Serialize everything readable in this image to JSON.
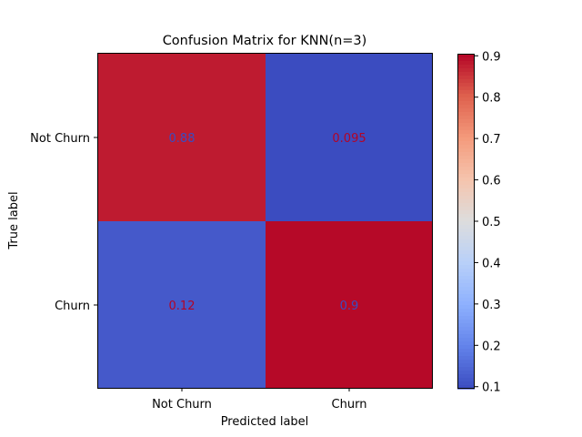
{
  "chart_data": {
    "type": "heatmap",
    "title": "Confusion Matrix for KNN(n=3)",
    "xlabel": "Predicted label",
    "ylabel": "True label",
    "x_categories": [
      "Not Churn",
      "Churn"
    ],
    "y_categories": [
      "Not Churn",
      "Churn"
    ],
    "values": [
      [
        0.88,
        0.095
      ],
      [
        0.12,
        0.9
      ]
    ],
    "cell_labels": [
      [
        "0.88",
        "0.095"
      ],
      [
        "0.12",
        "0.9"
      ]
    ],
    "colormap": "coolwarm",
    "colorbar": {
      "range": [
        0.095,
        0.905
      ],
      "ticks": [
        0.1,
        0.2,
        0.3,
        0.4,
        0.5,
        0.6,
        0.7,
        0.8,
        0.9
      ],
      "tick_labels": [
        "0.1",
        "0.2",
        "0.3",
        "0.4",
        "0.5",
        "0.6",
        "0.7",
        "0.8",
        "0.9"
      ]
    },
    "text_colors": {
      "on_warm": "#3b4cc0",
      "on_cool": "#b40426"
    }
  }
}
